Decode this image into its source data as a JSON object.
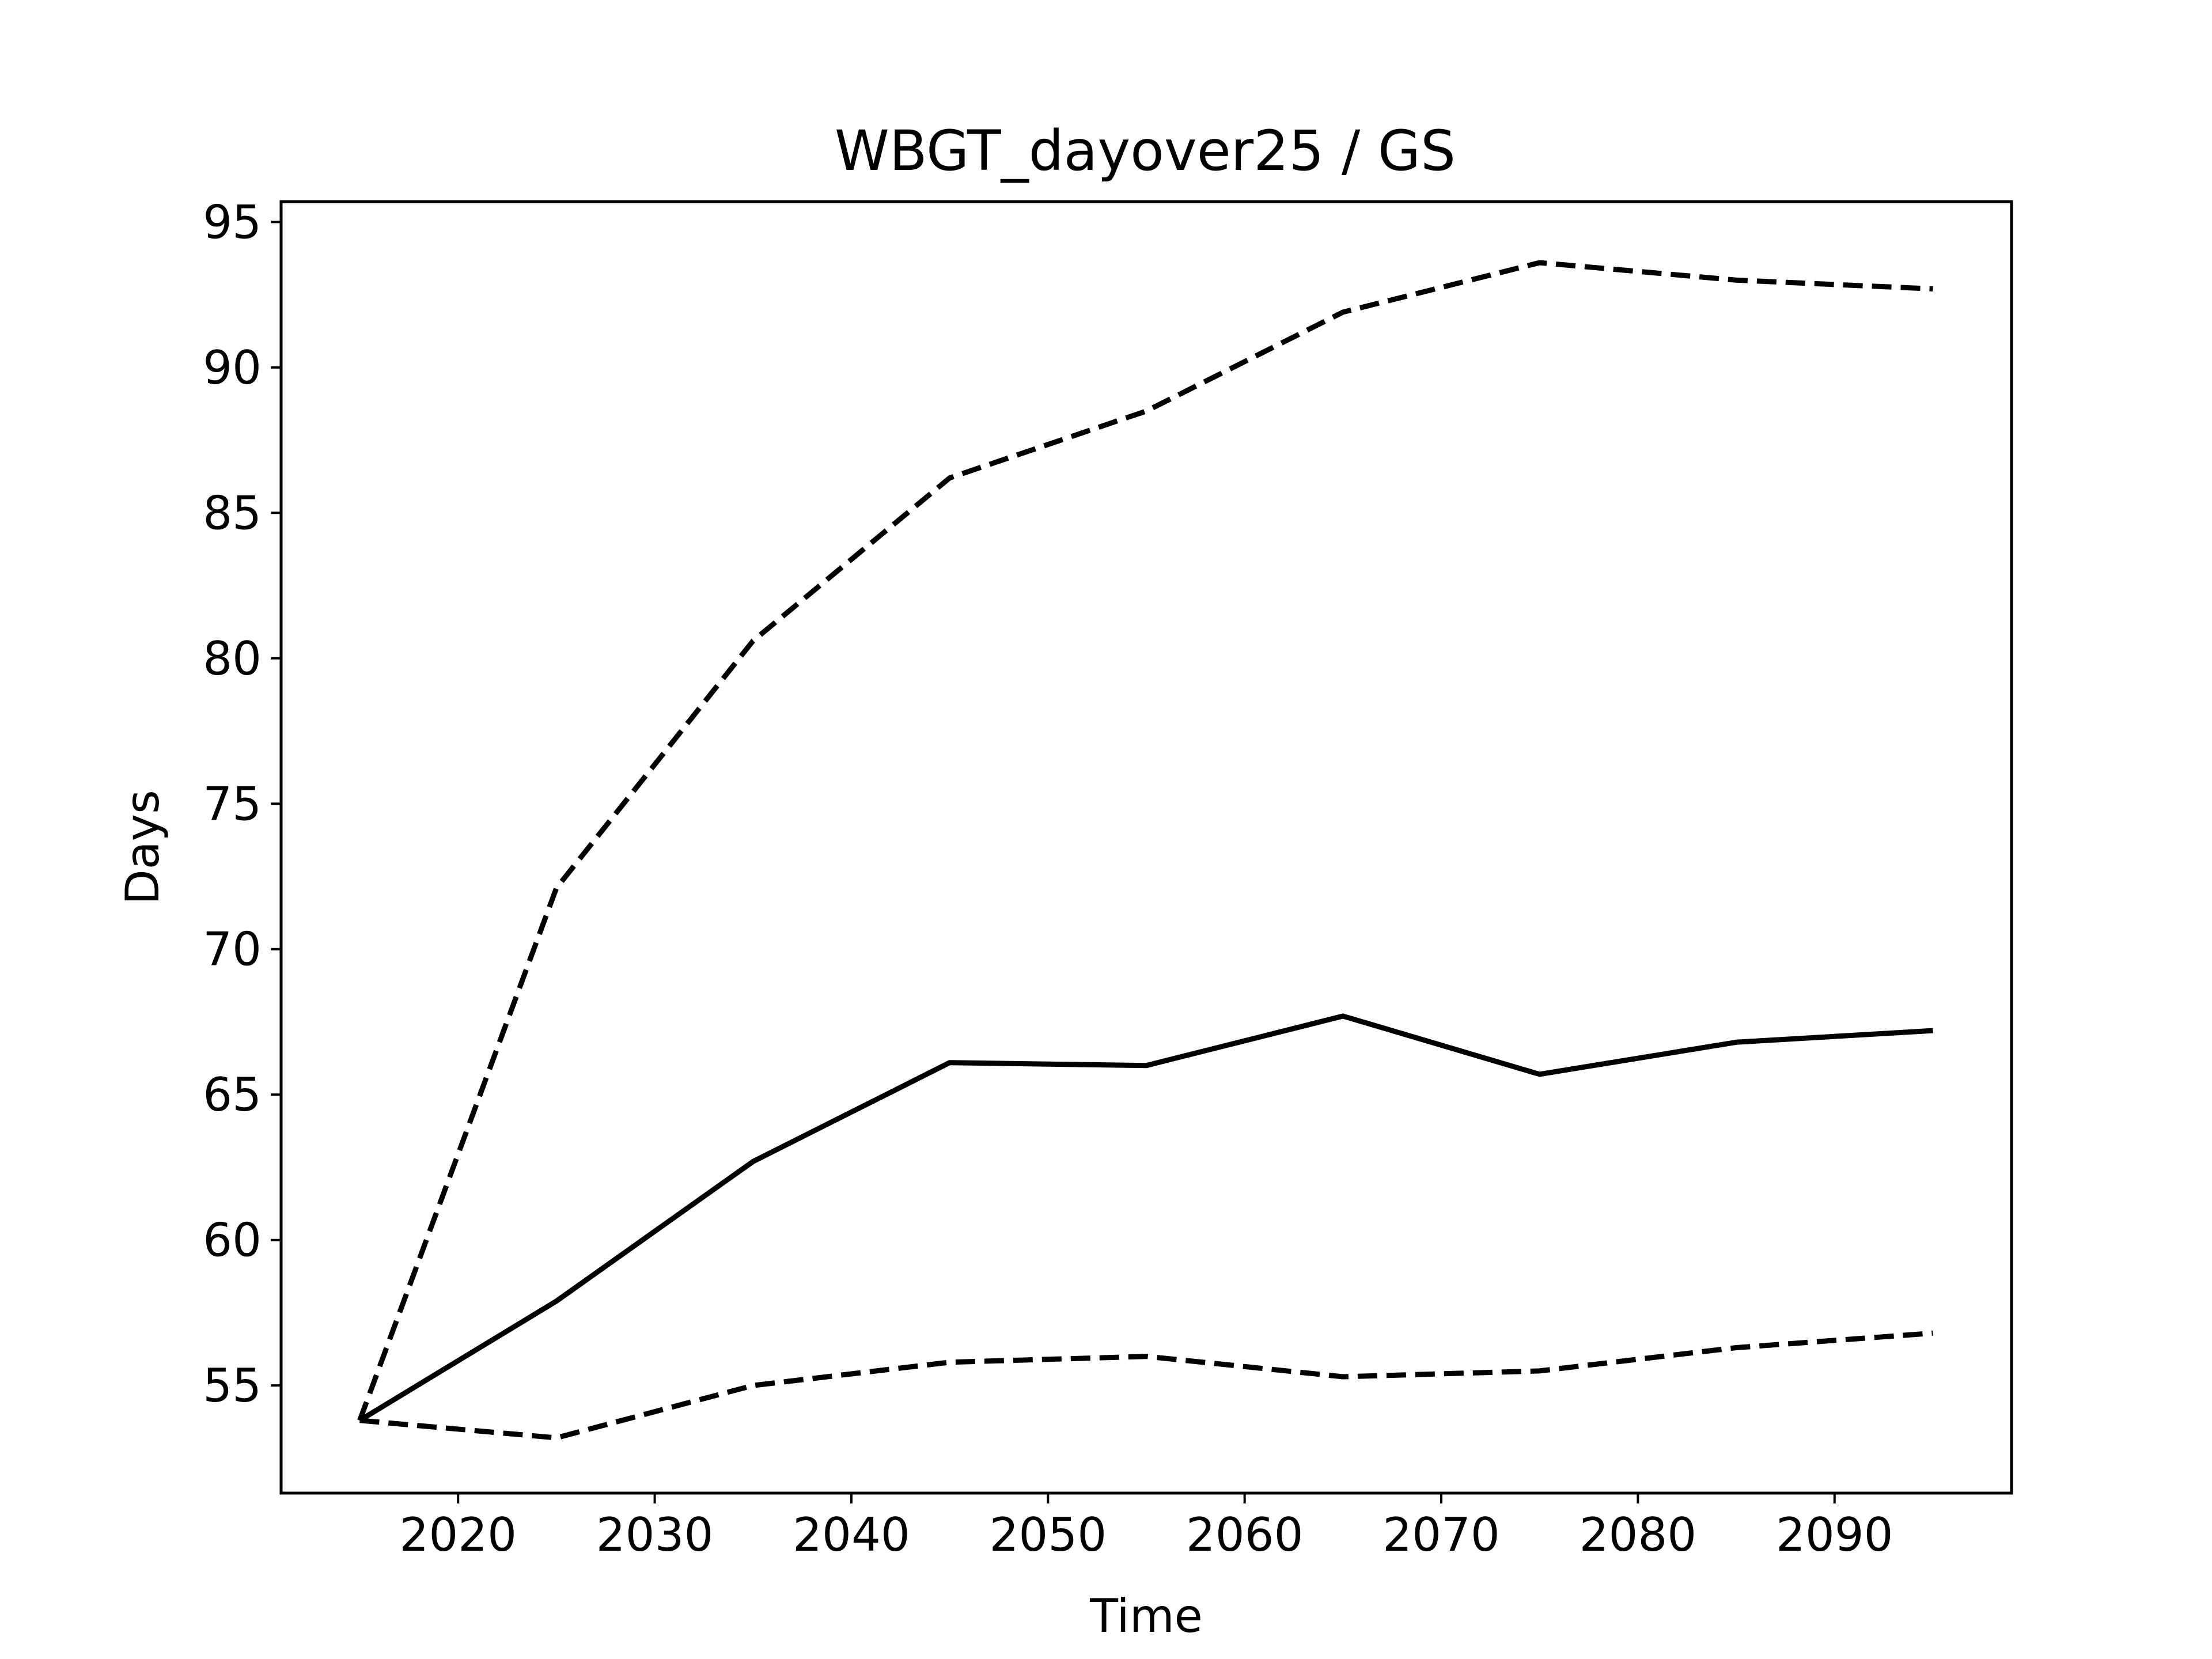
{
  "chart_data": {
    "type": "line",
    "title": "WBGT_dayover25 / GS",
    "xlabel": "Time",
    "ylabel": "Days",
    "x": [
      2015,
      2025,
      2035,
      2045,
      2055,
      2065,
      2075,
      2085,
      2095
    ],
    "xlim": [
      2011,
      2099
    ],
    "ylim": [
      51.3,
      95.7
    ],
    "xticks": [
      2020,
      2030,
      2040,
      2050,
      2060,
      2070,
      2080,
      2090
    ],
    "yticks": [
      55,
      60,
      65,
      70,
      75,
      80,
      85,
      90,
      95
    ],
    "grid": false,
    "legend": "none",
    "line_color": "#000000",
    "series": [
      {
        "style": "dashed",
        "values": [
          53.8,
          72.1,
          80.6,
          86.2,
          88.5,
          91.9,
          93.6,
          93.0,
          92.7
        ]
      },
      {
        "style": "solid",
        "values": [
          53.8,
          57.9,
          62.7,
          66.1,
          66.0,
          67.7,
          65.7,
          66.8,
          67.2
        ]
      },
      {
        "style": "dashed",
        "values": [
          53.8,
          53.2,
          55.0,
          55.8,
          56.0,
          55.3,
          55.5,
          56.3,
          56.8
        ]
      }
    ]
  }
}
